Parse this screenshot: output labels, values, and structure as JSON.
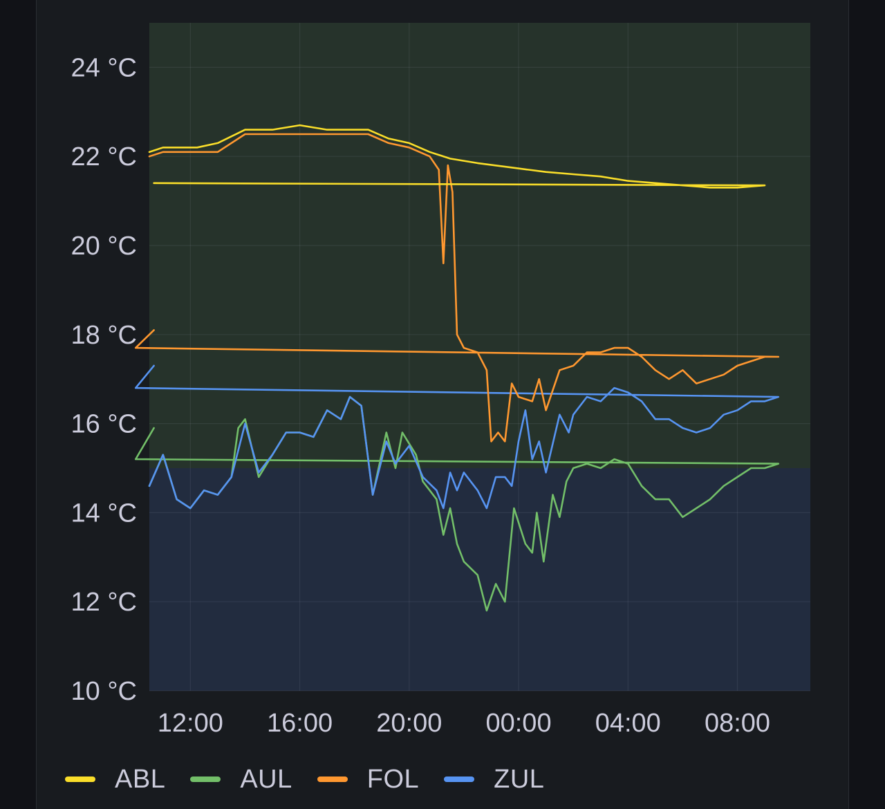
{
  "chart_data": {
    "type": "line",
    "title": "",
    "xlabel": "",
    "ylabel": "",
    "y_unit": "°C",
    "ylim": [
      10,
      25
    ],
    "x_range": [
      "10:30",
      "10:40 +1d"
    ],
    "xticks": [
      "12:00",
      "16:00",
      "20:00",
      "00:00",
      "04:00",
      "08:00"
    ],
    "yticks": [
      "10 °C",
      "12 °C",
      "14 °C",
      "16 °C",
      "18 °C",
      "20 °C",
      "22 °C",
      "24 °C"
    ],
    "grid": true,
    "legend_position": "bottom-left",
    "threshold": {
      "value": 15,
      "above_color": "#26332b",
      "below_color": "#222c3f"
    },
    "series": [
      {
        "name": "ABL",
        "color": "#fade2a",
        "points": [
          [
            "10:30",
            22.1
          ],
          [
            "11:00",
            22.2
          ],
          [
            "11:45",
            22.2
          ],
          [
            "12:15",
            22.2
          ],
          [
            "13:00",
            22.3
          ],
          [
            "14:00",
            22.6
          ],
          [
            "15:00",
            22.6
          ],
          [
            "16:00",
            22.7
          ],
          [
            "17:00",
            22.6
          ],
          [
            "18:30",
            22.6
          ],
          [
            "19:15",
            22.4
          ],
          [
            "20:00",
            22.3
          ],
          [
            "20:45",
            22.1
          ],
          [
            "21:30",
            21.95
          ],
          [
            "22:30",
            21.85
          ],
          [
            "23:45",
            21.75
          ],
          [
            "01:00",
            21.65
          ],
          [
            "02:00",
            21.6
          ],
          [
            "03:00",
            21.55
          ],
          [
            "04:00",
            21.45
          ],
          [
            "05:00",
            21.4
          ],
          [
            "06:00",
            21.35
          ],
          [
            "07:00",
            21.3
          ],
          [
            "08:00",
            21.3
          ],
          [
            "09:00",
            21.35
          ],
          [
            "10:40",
            21.4
          ]
        ]
      },
      {
        "name": "AUL",
        "color": "#73bf69",
        "points": [
          [
            "10:30",
            14.6
          ],
          [
            "11:00",
            15.3
          ],
          [
            "11:30",
            14.3
          ],
          [
            "12:00",
            14.1
          ],
          [
            "12:30",
            14.5
          ],
          [
            "13:00",
            14.4
          ],
          [
            "13:30",
            14.8
          ],
          [
            "13:45",
            15.9
          ],
          [
            "14:00",
            16.1
          ],
          [
            "14:30",
            14.8
          ],
          [
            "15:00",
            15.3
          ],
          [
            "15:30",
            15.8
          ],
          [
            "16:00",
            15.8
          ],
          [
            "16:30",
            15.7
          ],
          [
            "17:00",
            16.3
          ],
          [
            "17:30",
            16.1
          ],
          [
            "17:50",
            16.6
          ],
          [
            "18:15",
            16.4
          ],
          [
            "18:40",
            14.4
          ],
          [
            "19:10",
            15.8
          ],
          [
            "19:30",
            15.0
          ],
          [
            "19:45",
            15.8
          ],
          [
            "20:15",
            15.3
          ],
          [
            "20:30",
            14.7
          ],
          [
            "21:00",
            14.3
          ],
          [
            "21:15",
            13.5
          ],
          [
            "21:30",
            14.1
          ],
          [
            "21:45",
            13.3
          ],
          [
            "22:00",
            12.9
          ],
          [
            "22:30",
            12.6
          ],
          [
            "22:50",
            11.8
          ],
          [
            "23:10",
            12.4
          ],
          [
            "23:30",
            12.0
          ],
          [
            "23:50",
            14.1
          ],
          [
            "00:15",
            13.3
          ],
          [
            "00:30",
            13.1
          ],
          [
            "00:40",
            14.0
          ],
          [
            "00:55",
            12.9
          ],
          [
            "01:15",
            14.4
          ],
          [
            "01:30",
            13.9
          ],
          [
            "01:45",
            14.7
          ],
          [
            "02:00",
            15.0
          ],
          [
            "02:30",
            15.1
          ],
          [
            "03:00",
            15.0
          ],
          [
            "03:30",
            15.2
          ],
          [
            "04:00",
            15.1
          ],
          [
            "04:30",
            14.6
          ],
          [
            "05:00",
            14.3
          ],
          [
            "05:30",
            14.3
          ],
          [
            "06:00",
            13.9
          ],
          [
            "06:30",
            14.1
          ],
          [
            "07:00",
            14.3
          ],
          [
            "07:30",
            14.6
          ],
          [
            "08:00",
            14.8
          ],
          [
            "08:30",
            15.0
          ],
          [
            "09:00",
            15.0
          ],
          [
            "09:30",
            15.1
          ],
          [
            "10:00",
            15.2
          ],
          [
            "10:40",
            15.9
          ]
        ]
      },
      {
        "name": "FOL",
        "color": "#ff9830",
        "points": [
          [
            "10:30",
            22.0
          ],
          [
            "11:00",
            22.1
          ],
          [
            "11:45",
            22.1
          ],
          [
            "12:15",
            22.1
          ],
          [
            "13:00",
            22.1
          ],
          [
            "14:00",
            22.5
          ],
          [
            "15:00",
            22.5
          ],
          [
            "16:00",
            22.5
          ],
          [
            "17:00",
            22.5
          ],
          [
            "18:30",
            22.5
          ],
          [
            "19:15",
            22.3
          ],
          [
            "20:00",
            22.2
          ],
          [
            "20:45",
            22.0
          ],
          [
            "21:05",
            21.7
          ],
          [
            "21:15",
            19.6
          ],
          [
            "21:25",
            21.8
          ],
          [
            "21:35",
            21.2
          ],
          [
            "21:45",
            18.0
          ],
          [
            "22:00",
            17.7
          ],
          [
            "22:30",
            17.6
          ],
          [
            "22:50",
            17.2
          ],
          [
            "23:00",
            15.6
          ],
          [
            "23:15",
            15.8
          ],
          [
            "23:30",
            15.6
          ],
          [
            "23:45",
            16.9
          ],
          [
            "24:00",
            16.6
          ],
          [
            "00:30",
            16.5
          ],
          [
            "00:45",
            17.0
          ],
          [
            "01:00",
            16.3
          ],
          [
            "01:30",
            17.2
          ],
          [
            "02:00",
            17.3
          ],
          [
            "02:30",
            17.6
          ],
          [
            "03:00",
            17.6
          ],
          [
            "03:30",
            17.7
          ],
          [
            "04:00",
            17.7
          ],
          [
            "04:30",
            17.5
          ],
          [
            "05:00",
            17.2
          ],
          [
            "05:30",
            17.0
          ],
          [
            "06:00",
            17.2
          ],
          [
            "06:30",
            16.9
          ],
          [
            "07:00",
            17.0
          ],
          [
            "07:30",
            17.1
          ],
          [
            "08:00",
            17.3
          ],
          [
            "08:30",
            17.4
          ],
          [
            "09:00",
            17.5
          ],
          [
            "09:30",
            17.5
          ],
          [
            "10:00",
            17.7
          ],
          [
            "10:40",
            18.1
          ]
        ]
      },
      {
        "name": "ZUL",
        "color": "#5794f2",
        "points": [
          [
            "10:30",
            14.6
          ],
          [
            "11:00",
            15.3
          ],
          [
            "11:30",
            14.3
          ],
          [
            "12:00",
            14.1
          ],
          [
            "12:30",
            14.5
          ],
          [
            "13:00",
            14.4
          ],
          [
            "13:30",
            14.8
          ],
          [
            "14:00",
            16.0
          ],
          [
            "14:30",
            14.9
          ],
          [
            "15:00",
            15.3
          ],
          [
            "15:30",
            15.8
          ],
          [
            "16:00",
            15.8
          ],
          [
            "16:30",
            15.7
          ],
          [
            "17:00",
            16.3
          ],
          [
            "17:30",
            16.1
          ],
          [
            "17:50",
            16.6
          ],
          [
            "18:15",
            16.4
          ],
          [
            "18:40",
            14.4
          ],
          [
            "19:10",
            15.6
          ],
          [
            "19:30",
            15.1
          ],
          [
            "20:00",
            15.5
          ],
          [
            "20:30",
            14.8
          ],
          [
            "21:00",
            14.5
          ],
          [
            "21:15",
            14.1
          ],
          [
            "21:30",
            14.9
          ],
          [
            "21:45",
            14.5
          ],
          [
            "22:00",
            14.9
          ],
          [
            "22:30",
            14.5
          ],
          [
            "22:50",
            14.1
          ],
          [
            "23:10",
            14.8
          ],
          [
            "23:30",
            14.8
          ],
          [
            "23:45",
            14.6
          ],
          [
            "24:00",
            15.6
          ],
          [
            "00:15",
            16.3
          ],
          [
            "00:30",
            15.2
          ],
          [
            "00:45",
            15.6
          ],
          [
            "01:00",
            14.9
          ],
          [
            "01:30",
            16.2
          ],
          [
            "01:50",
            15.8
          ],
          [
            "02:00",
            16.2
          ],
          [
            "02:30",
            16.6
          ],
          [
            "03:00",
            16.5
          ],
          [
            "03:30",
            16.8
          ],
          [
            "04:00",
            16.7
          ],
          [
            "04:30",
            16.5
          ],
          [
            "05:00",
            16.1
          ],
          [
            "05:30",
            16.1
          ],
          [
            "06:00",
            15.9
          ],
          [
            "06:30",
            15.8
          ],
          [
            "07:00",
            15.9
          ],
          [
            "07:30",
            16.2
          ],
          [
            "08:00",
            16.3
          ],
          [
            "08:30",
            16.5
          ],
          [
            "09:00",
            16.5
          ],
          [
            "09:30",
            16.6
          ],
          [
            "10:00",
            16.8
          ],
          [
            "10:40",
            17.3
          ]
        ]
      }
    ]
  },
  "legend": {
    "items": [
      {
        "label": "ABL",
        "color": "#fade2a"
      },
      {
        "label": "AUL",
        "color": "#73bf69"
      },
      {
        "label": "FOL",
        "color": "#ff9830"
      },
      {
        "label": "ZUL",
        "color": "#5794f2"
      }
    ]
  }
}
